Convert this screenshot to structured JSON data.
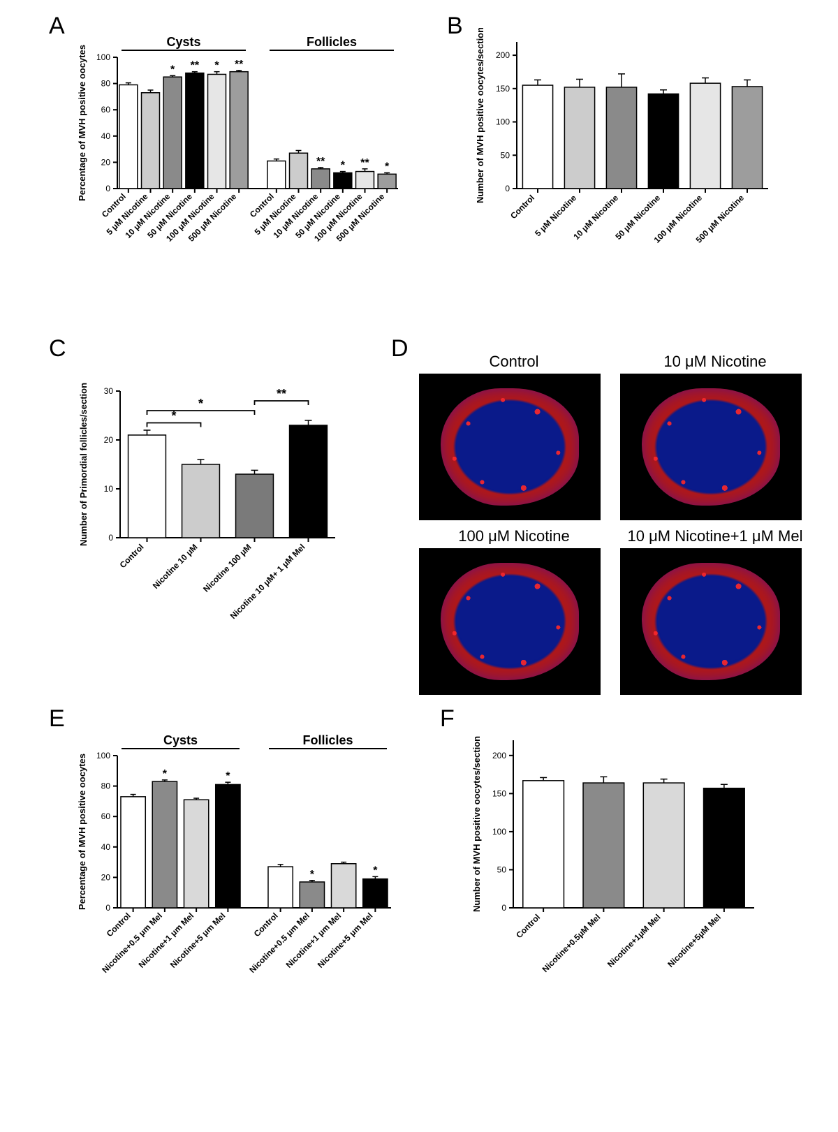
{
  "figure_background": "#ffffff",
  "panels": {
    "A": {
      "label": "A",
      "type": "grouped_bar",
      "ylabel": "Percentage of MVH positive oocytes",
      "yticks": [
        0,
        20,
        40,
        60,
        80,
        100
      ],
      "ylim": [
        0,
        100
      ],
      "groups": [
        "Cysts",
        "Follicles"
      ],
      "categories": [
        "Control",
        "5 μM Nicotine",
        "10 μM Nicotine",
        "50 μM Nicotine",
        "100 μM Nicotine",
        "500 μM Nicotine"
      ],
      "data": {
        "Cysts": {
          "values": [
            79,
            73,
            85,
            88,
            87,
            89
          ],
          "errors": [
            1.5,
            2,
            1,
            1,
            2,
            1
          ],
          "sig": [
            "",
            "",
            "*",
            "**",
            "*",
            "**"
          ]
        },
        "Follicles": {
          "values": [
            21,
            27,
            15,
            12,
            13,
            11
          ],
          "errors": [
            1.5,
            2,
            1,
            1,
            2,
            1
          ],
          "sig": [
            "",
            "",
            "**",
            "*",
            "**",
            "*"
          ]
        }
      },
      "bar_colors": [
        "#ffffff",
        "#cccccc",
        "#8a8a8a",
        "#000000",
        "#e6e6e6",
        "#9d9d9d"
      ],
      "bar_border": "#000000",
      "axis_color": "#000000",
      "label_fontsize": 13,
      "tick_fontsize": 12,
      "group_title_fontsize": 18,
      "sig_fontsize": 16
    },
    "B": {
      "label": "B",
      "type": "bar",
      "ylabel": "Number of MVH positive oocytes/section",
      "yticks": [
        0,
        50,
        100,
        150,
        200
      ],
      "ylim": [
        0,
        220
      ],
      "categories": [
        "Control",
        "5 μM Nicotine",
        "10 μM Nicotine",
        "50 μM Nicotine",
        "100 μM Nicotine",
        "500 μM Nicotine"
      ],
      "values": [
        155,
        152,
        152,
        142,
        158,
        153
      ],
      "errors": [
        8,
        12,
        20,
        6,
        8,
        10
      ],
      "bar_colors": [
        "#ffffff",
        "#cccccc",
        "#8a8a8a",
        "#000000",
        "#e6e6e6",
        "#9d9d9d"
      ],
      "bar_border": "#000000",
      "axis_color": "#000000",
      "label_fontsize": 13,
      "tick_fontsize": 12
    },
    "C": {
      "label": "C",
      "type": "bar",
      "ylabel": "Number of Primordial follicles/section",
      "yticks": [
        0,
        10,
        20,
        30
      ],
      "ylim": [
        0,
        30
      ],
      "categories": [
        "Control",
        "Nicotine 10 μM",
        "Nicotine 100 μM",
        "Nicotine 10 μM+ 1 μM Mel"
      ],
      "values": [
        21,
        15,
        13,
        23
      ],
      "errors": [
        1,
        1,
        0.8,
        1
      ],
      "bar_colors": [
        "#ffffff",
        "#cccccc",
        "#7a7a7a",
        "#000000"
      ],
      "bar_border": "#000000",
      "axis_color": "#000000",
      "label_fontsize": 13,
      "tick_fontsize": 12,
      "sig_brackets": [
        {
          "from": 0,
          "to": 1,
          "y": 23.5,
          "label": "*"
        },
        {
          "from": 0,
          "to": 2,
          "y": 26,
          "label": "*"
        },
        {
          "from": 2,
          "to": 3,
          "y": 28,
          "label": "**"
        }
      ],
      "sig_fontsize": 18
    },
    "D": {
      "label": "D",
      "type": "micrographs",
      "cells": [
        {
          "title": "Control"
        },
        {
          "title": "10 μM Nicotine"
        },
        {
          "title": "100 μM Nicotine"
        },
        {
          "title": "10 μM Nicotine+1 μM Mel"
        }
      ],
      "image_bg": "#000000",
      "ring_color": "#d02020",
      "core_color": "#1222aa"
    },
    "E": {
      "label": "E",
      "type": "grouped_bar",
      "ylabel": "Percentage of MVH positive oocytes",
      "yticks": [
        0,
        20,
        40,
        60,
        80,
        100
      ],
      "ylim": [
        0,
        100
      ],
      "groups": [
        "Cysts",
        "Follicles"
      ],
      "categories": [
        "Control",
        "Nicotine+0.5 μm Mel",
        "Nicotine+1 μm Mel",
        "Nicotine+5 μm Mel"
      ],
      "data": {
        "Cysts": {
          "values": [
            73,
            83,
            71,
            81
          ],
          "errors": [
            1.5,
            1,
            1,
            1.5
          ],
          "sig": [
            "",
            "*",
            "",
            "*"
          ]
        },
        "Follicles": {
          "values": [
            27,
            17,
            29,
            19
          ],
          "errors": [
            1.5,
            1,
            1,
            1.5
          ],
          "sig": [
            "",
            "*",
            "",
            "*"
          ]
        }
      },
      "bar_colors": [
        "#ffffff",
        "#8a8a8a",
        "#d9d9d9",
        "#000000"
      ],
      "bar_border": "#000000",
      "axis_color": "#000000",
      "label_fontsize": 13,
      "tick_fontsize": 12,
      "group_title_fontsize": 18,
      "sig_fontsize": 16
    },
    "F": {
      "label": "F",
      "type": "bar",
      "ylabel": "Number of MVH positive oocytes/section",
      "yticks": [
        0,
        50,
        100,
        150,
        200
      ],
      "ylim": [
        0,
        220
      ],
      "categories": [
        "Control",
        "Nicotine+0.5μM Mel",
        "Nicotine+1μM Mel",
        "Nicotine+5μM Mel"
      ],
      "values": [
        167,
        164,
        164,
        157
      ],
      "errors": [
        4,
        8,
        5,
        5
      ],
      "bar_colors": [
        "#ffffff",
        "#8a8a8a",
        "#d9d9d9",
        "#000000"
      ],
      "bar_border": "#000000",
      "axis_color": "#000000",
      "label_fontsize": 13,
      "tick_fontsize": 12
    }
  }
}
